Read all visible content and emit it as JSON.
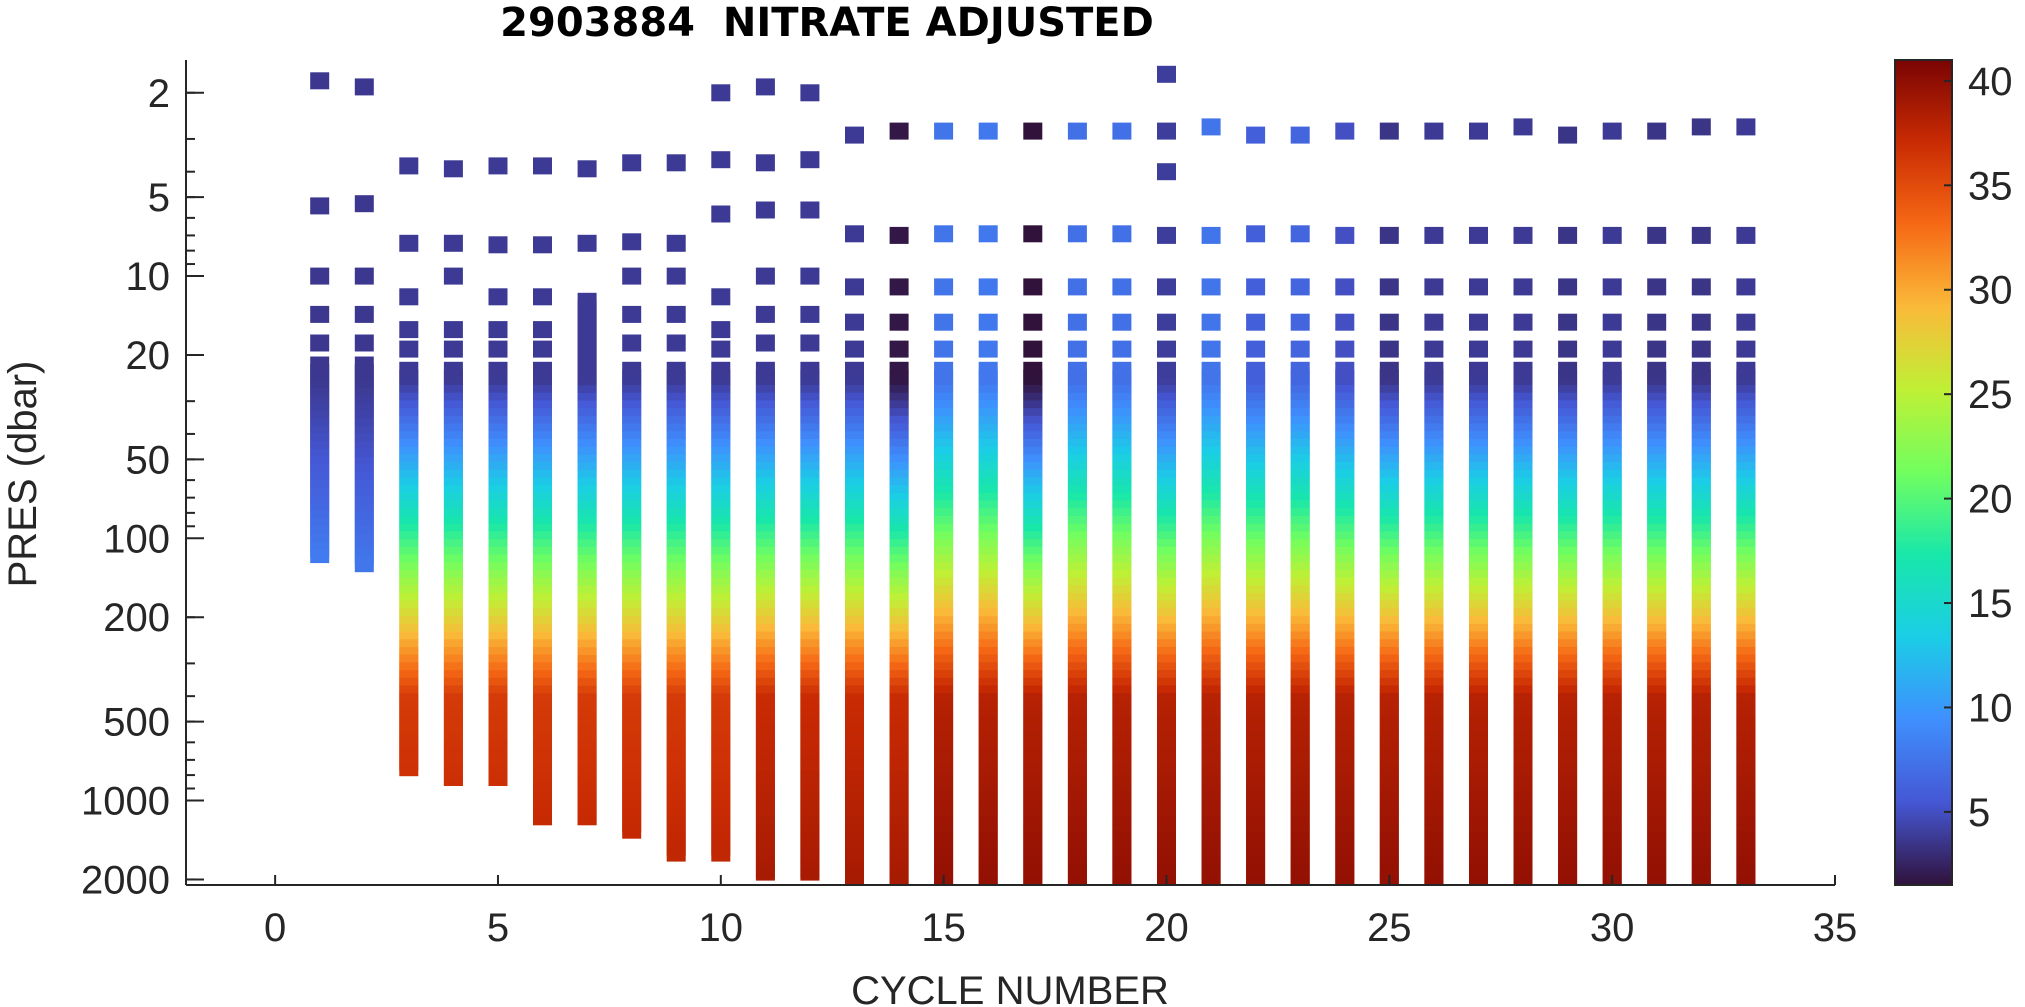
{
  "chart_data": {
    "type": "scatter",
    "title": "2903884  NITRATE ADJUSTED",
    "xlabel": "CYCLE NUMBER",
    "ylabel": "PRES (dbar)",
    "xlim": [
      -2,
      35
    ],
    "ylim": [
      1.5,
      2100
    ],
    "yscale": "log",
    "yreverse": true,
    "xticks": [
      0,
      5,
      10,
      15,
      20,
      25,
      30,
      35
    ],
    "yticks": [
      2,
      5,
      10,
      20,
      50,
      100,
      200,
      500,
      1000,
      2000
    ],
    "colormap": "turbo",
    "clim": [
      1.5,
      41
    ],
    "colorbar_ticks": [
      5,
      10,
      15,
      20,
      25,
      30,
      35,
      40
    ],
    "grid": false,
    "profiles": [
      {
        "cycle": 1,
        "max_pres": 120,
        "surface": [
          1.8,
          5.4,
          10,
          14,
          18
        ],
        "cont_start": 21,
        "n_surface": 3.7,
        "n_deep": 12
      },
      {
        "cycle": 2,
        "max_pres": 130,
        "surface": [
          1.9,
          5.3,
          10,
          14,
          18
        ],
        "cont_start": 21,
        "n_surface": 3.7,
        "n_deep": 11
      },
      {
        "cycle": 3,
        "max_pres": 780,
        "surface": [
          3.8,
          7.5,
          12,
          16,
          19
        ],
        "cont_start": 22,
        "n_surface": 3.8,
        "n_deep": 36
      },
      {
        "cycle": 4,
        "max_pres": 850,
        "surface": [
          3.9,
          7.5,
          10,
          16,
          19
        ],
        "cont_start": 22,
        "n_surface": 3.8,
        "n_deep": 36
      },
      {
        "cycle": 5,
        "max_pres": 850,
        "surface": [
          3.8,
          7.6,
          12,
          16,
          19
        ],
        "cont_start": 22,
        "n_surface": 3.8,
        "n_deep": 36
      },
      {
        "cycle": 6,
        "max_pres": 1200,
        "surface": [
          3.8,
          7.6,
          12,
          16,
          19
        ],
        "cont_start": 22,
        "n_surface": 3.8,
        "n_deep": 36
      },
      {
        "cycle": 7,
        "max_pres": 1200,
        "surface": [
          3.9,
          7.5
        ],
        "cont_start": 12,
        "n_surface": 3.8,
        "n_deep": 36
      },
      {
        "cycle": 8,
        "max_pres": 1350,
        "surface": [
          3.7,
          7.4,
          10,
          14,
          18
        ],
        "cont_start": 22,
        "n_surface": 3.8,
        "n_deep": 36
      },
      {
        "cycle": 9,
        "max_pres": 1650,
        "surface": [
          3.7,
          7.5,
          10,
          14,
          18
        ],
        "cont_start": 22,
        "n_surface": 3.8,
        "n_deep": 36
      },
      {
        "cycle": 10,
        "max_pres": 1650,
        "surface": [
          2.0,
          3.6,
          5.8,
          12,
          16,
          19
        ],
        "cont_start": 22,
        "n_surface": 3.8,
        "n_deep": 36
      },
      {
        "cycle": 11,
        "max_pres": 1950,
        "surface": [
          1.9,
          3.7,
          5.6,
          10,
          14,
          18
        ],
        "cont_start": 22,
        "n_surface": 3.8,
        "n_deep": 37
      },
      {
        "cycle": 12,
        "max_pres": 1950,
        "surface": [
          2.0,
          3.6,
          5.6,
          10,
          14,
          18
        ],
        "cont_start": 22,
        "n_surface": 3.8,
        "n_deep": 37
      },
      {
        "cycle": 13,
        "max_pres": 2050,
        "surface": [
          2.9,
          6.9,
          11,
          15,
          19
        ],
        "cont_start": 22,
        "n_surface": 3.8,
        "n_deep": 37
      },
      {
        "cycle": 14,
        "max_pres": 2100,
        "surface": [
          2.8,
          7.0,
          11,
          15,
          19
        ],
        "cont_start": 22,
        "n_surface": 1.8,
        "n_deep": 37
      },
      {
        "cycle": 15,
        "max_pres": 2100,
        "surface": [
          2.8,
          6.9,
          11,
          15,
          19
        ],
        "cont_start": 22,
        "n_surface": 7.5,
        "n_deep": 38
      },
      {
        "cycle": 16,
        "max_pres": 2100,
        "surface": [
          2.8,
          6.9,
          11,
          15,
          19
        ],
        "cont_start": 22,
        "n_surface": 7.8,
        "n_deep": 38
      },
      {
        "cycle": 17,
        "max_pres": 2100,
        "surface": [
          2.8,
          6.9,
          11,
          15,
          19
        ],
        "cont_start": 22,
        "n_surface": 1.5,
        "n_deep": 38
      },
      {
        "cycle": 18,
        "max_pres": 2100,
        "surface": [
          2.8,
          6.9,
          11,
          15,
          19
        ],
        "cont_start": 22,
        "n_surface": 7.2,
        "n_deep": 38
      },
      {
        "cycle": 19,
        "max_pres": 2100,
        "surface": [
          2.8,
          6.9,
          11,
          15,
          19
        ],
        "cont_start": 22,
        "n_surface": 7.2,
        "n_deep": 38
      },
      {
        "cycle": 20,
        "max_pres": 2100,
        "surface": [
          1.7,
          2.8,
          4.0,
          7.0,
          11,
          15,
          19
        ],
        "cont_start": 22,
        "n_surface": 4.0,
        "n_deep": 38
      },
      {
        "cycle": 21,
        "max_pres": 2100,
        "surface": [
          2.7,
          7.0,
          11,
          15,
          19
        ],
        "cont_start": 22,
        "n_surface": 7.5,
        "n_deep": 38
      },
      {
        "cycle": 22,
        "max_pres": 2100,
        "surface": [
          2.9,
          6.9,
          11,
          15,
          19
        ],
        "cont_start": 22,
        "n_surface": 6.0,
        "n_deep": 38
      },
      {
        "cycle": 23,
        "max_pres": 2100,
        "surface": [
          2.9,
          6.9,
          11,
          15,
          19
        ],
        "cont_start": 22,
        "n_surface": 6.5,
        "n_deep": 38
      },
      {
        "cycle": 24,
        "max_pres": 2100,
        "surface": [
          2.8,
          7.0,
          11,
          15,
          19
        ],
        "cont_start": 22,
        "n_surface": 5.0,
        "n_deep": 38
      },
      {
        "cycle": 25,
        "max_pres": 2100,
        "surface": [
          2.8,
          7.0,
          11,
          15,
          19
        ],
        "cont_start": 22,
        "n_surface": 3.5,
        "n_deep": 38
      },
      {
        "cycle": 26,
        "max_pres": 2100,
        "surface": [
          2.8,
          7.0,
          11,
          15,
          19
        ],
        "cont_start": 22,
        "n_surface": 3.8,
        "n_deep": 38
      },
      {
        "cycle": 27,
        "max_pres": 2100,
        "surface": [
          2.8,
          7.0,
          11,
          15,
          19
        ],
        "cont_start": 22,
        "n_surface": 3.8,
        "n_deep": 38
      },
      {
        "cycle": 28,
        "max_pres": 2100,
        "surface": [
          2.7,
          7.0,
          11,
          15,
          19
        ],
        "cont_start": 22,
        "n_surface": 3.8,
        "n_deep": 38
      },
      {
        "cycle": 29,
        "max_pres": 2100,
        "surface": [
          2.9,
          7.0,
          11,
          15,
          19
        ],
        "cont_start": 22,
        "n_surface": 3.5,
        "n_deep": 38
      },
      {
        "cycle": 30,
        "max_pres": 2100,
        "surface": [
          2.8,
          7.0,
          11,
          15,
          19
        ],
        "cont_start": 22,
        "n_surface": 3.8,
        "n_deep": 38
      },
      {
        "cycle": 31,
        "max_pres": 2100,
        "surface": [
          2.8,
          7.0,
          11,
          15,
          19
        ],
        "cont_start": 22,
        "n_surface": 3.5,
        "n_deep": 38
      },
      {
        "cycle": 32,
        "max_pres": 2100,
        "surface": [
          2.7,
          7.0,
          11,
          15,
          19
        ],
        "cont_start": 22,
        "n_surface": 3.5,
        "n_deep": 38
      },
      {
        "cycle": 33,
        "max_pres": 2100,
        "surface": [
          2.7,
          7.0,
          11,
          15,
          19
        ],
        "cont_start": 22,
        "n_surface": 3.8,
        "n_deep": 38
      }
    ]
  }
}
